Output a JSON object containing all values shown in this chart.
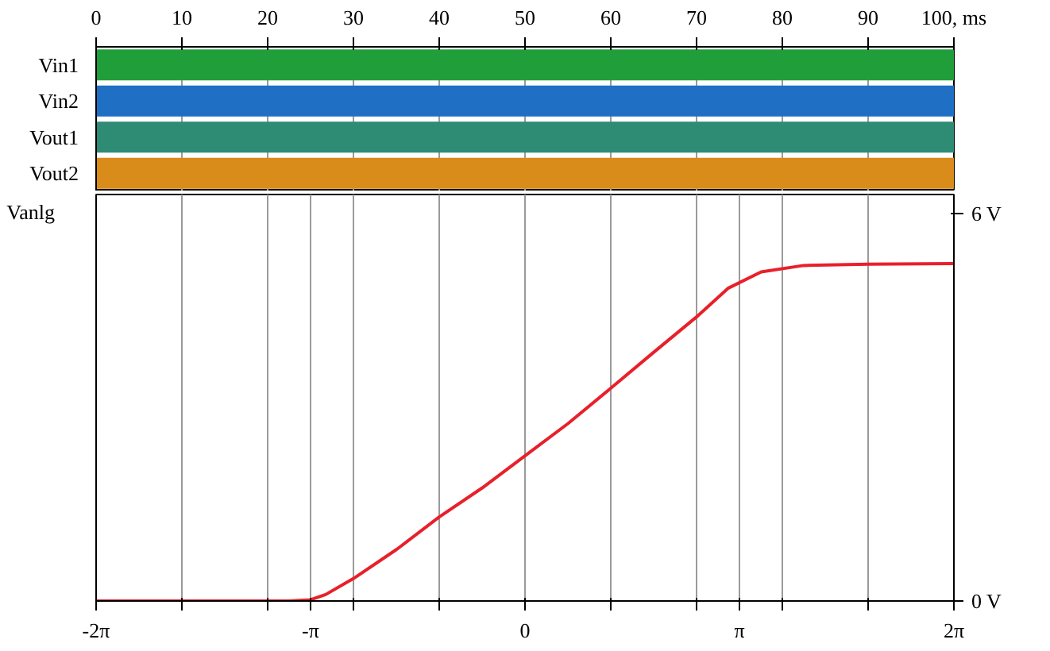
{
  "chart_data": [
    {
      "type": "bar",
      "orientation": "horizontal",
      "categories": [
        "Vin1",
        "Vin2",
        "Vout1",
        "Vout2"
      ],
      "values": [
        100,
        100,
        100,
        100
      ],
      "colors": [
        "#1f9e3a",
        "#1f6fc4",
        "#2e8b74",
        "#d98c1a"
      ],
      "xlim": [
        0,
        100
      ],
      "xticks": [
        0,
        10,
        20,
        30,
        40,
        50,
        60,
        70,
        80,
        90,
        {
          "value": 100,
          "label": "100, ms"
        }
      ],
      "grid": "x"
    },
    {
      "type": "line",
      "ylabel": "Vanlg",
      "x": [
        -6.28,
        -3.46,
        -3.14,
        -2.92,
        -2.51,
        -1.88,
        -1.26,
        -0.63,
        0,
        0.63,
        1.26,
        1.88,
        2.51,
        2.98,
        3.46,
        4.08,
        5.03,
        6.28
      ],
      "series": [
        {
          "color": "#e8202a",
          "values": [
            0,
            0,
            0.02,
            0.1,
            0.35,
            0.8,
            1.3,
            1.75,
            2.25,
            2.75,
            3.3,
            3.85,
            4.4,
            4.85,
            5.1,
            5.2,
            5.22,
            5.23
          ]
        }
      ],
      "xlim": [
        -6.2832,
        6.2832
      ],
      "ylim": [
        0,
        6.3
      ],
      "xticks": [
        {
          "value": -6.2832,
          "label": "-2π"
        },
        {
          "value": -5.0265,
          "label": null
        },
        {
          "value": -3.7699,
          "label": null
        },
        {
          "value": -3.1416,
          "label": "-π"
        },
        {
          "value": -2.5133,
          "label": null
        },
        {
          "value": -1.2566,
          "label": null
        },
        0,
        {
          "value": 1.2566,
          "label": null
        },
        {
          "value": 2.5133,
          "label": null
        },
        {
          "value": 3.1416,
          "label": "π"
        },
        {
          "value": 3.7699,
          "label": null
        },
        {
          "value": 5.0265,
          "label": null
        },
        {
          "value": 6.2832,
          "label": "2π"
        }
      ],
      "yticks": [
        {
          "value": 0,
          "label": "0 V"
        },
        {
          "value": 6,
          "label": "6 V"
        }
      ],
      "grid": "x"
    }
  ]
}
